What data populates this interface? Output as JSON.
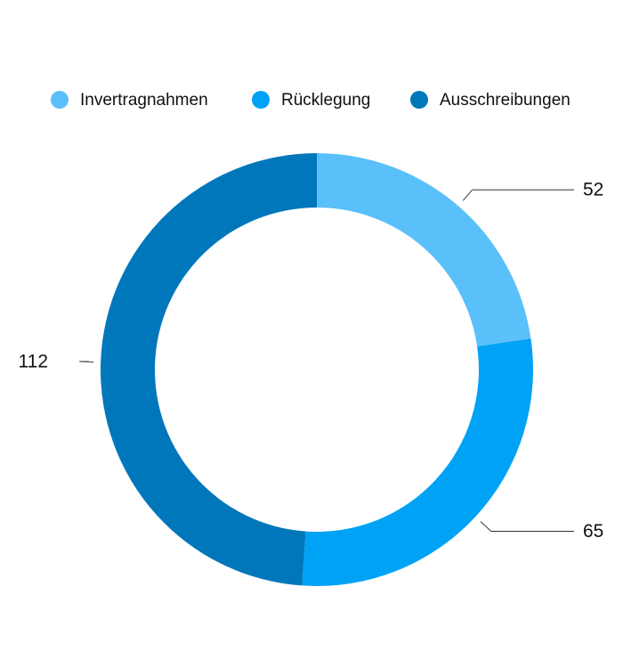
{
  "chart_data": {
    "type": "donut",
    "categories": [
      "Invertragnahmen",
      "Rücklegung",
      "Ausschreibungen"
    ],
    "values": [
      52,
      65,
      112
    ],
    "colors": [
      "#5ac0fa",
      "#00a2f6",
      "#0077bb"
    ],
    "legend": "top"
  }
}
